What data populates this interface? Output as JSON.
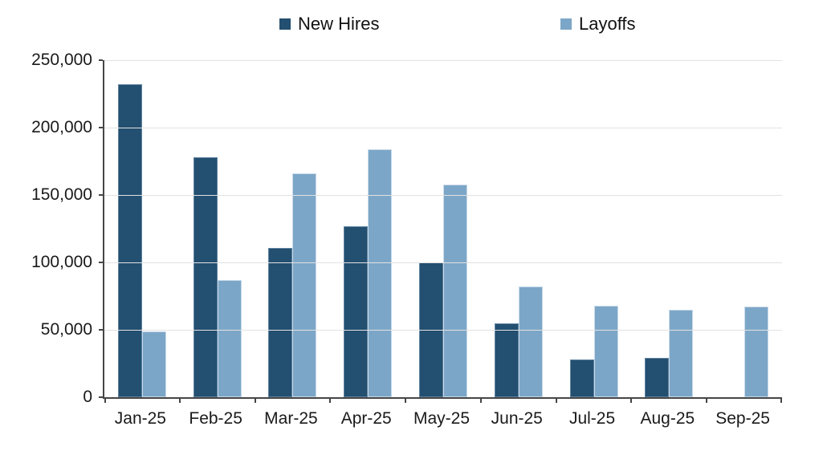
{
  "chart_data": {
    "type": "bar",
    "title": "",
    "categories": [
      "Jan-25",
      "Feb-25",
      "Mar-25",
      "Apr-25",
      "May-25",
      "Jun-25",
      "Jul-25",
      "Aug-25",
      "Sep-25"
    ],
    "series": [
      {
        "name": "New Hires",
        "color": "#234F70",
        "values": [
          232000,
          178000,
          111000,
          127000,
          100000,
          55000,
          28000,
          29000,
          0
        ]
      },
      {
        "name": "Layoffs",
        "color": "#7CA6C7",
        "values": [
          49000,
          87000,
          166000,
          184000,
          158000,
          82000,
          68000,
          65000,
          67000
        ]
      }
    ],
    "ylim": [
      0,
      250000
    ],
    "ytick_interval": 50000,
    "ytick_labels": [
      "0",
      "50,000",
      "100,000",
      "150,000",
      "200,000",
      "250,000"
    ],
    "xlabel": "",
    "ylabel": "",
    "grid": "horizontal",
    "legend_position": "top"
  },
  "colors": {
    "axis": "#464646",
    "gridline": "#E2E2E2",
    "text": "#1A1A1A"
  }
}
